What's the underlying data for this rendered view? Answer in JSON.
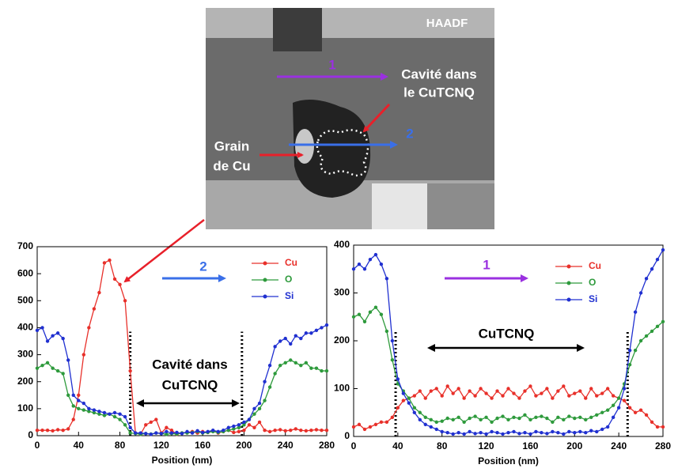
{
  "image": {
    "label": "HAADF",
    "arrow_1": "1",
    "cavity": [
      "Cavité dans",
      "le CuTCNQ"
    ],
    "arrow_2": "2",
    "grain": [
      "Grain",
      "de Cu"
    ]
  },
  "chart_data": [
    {
      "type": "line",
      "xlabel": "Position (nm)",
      "xlim": [
        0,
        280
      ],
      "xticks": [
        0,
        40,
        80,
        120,
        160,
        200,
        240,
        280
      ],
      "ylim": [
        0,
        700
      ],
      "yticks": [
        0,
        100,
        200,
        300,
        400,
        500,
        600,
        700
      ],
      "annotations": {
        "number": "2",
        "number_color": "#3a6fe8",
        "region": [
          "Cavité dans",
          "CuTCNQ"
        ]
      },
      "vlines": [
        90,
        198
      ],
      "x": [
        0,
        5,
        10,
        15,
        20,
        25,
        30,
        35,
        40,
        45,
        50,
        55,
        60,
        65,
        70,
        75,
        80,
        85,
        90,
        95,
        100,
        105,
        110,
        115,
        120,
        125,
        130,
        135,
        140,
        145,
        150,
        155,
        160,
        165,
        170,
        175,
        180,
        185,
        190,
        195,
        200,
        205,
        210,
        215,
        220,
        225,
        230,
        235,
        240,
        245,
        250,
        255,
        260,
        265,
        270,
        275,
        280
      ],
      "series": [
        {
          "name": "Cu",
          "color": "#e8302a",
          "values": [
            20,
            20,
            20,
            18,
            22,
            20,
            25,
            60,
            150,
            300,
            400,
            470,
            530,
            640,
            650,
            580,
            560,
            500,
            240,
            10,
            5,
            40,
            50,
            60,
            10,
            30,
            20,
            5,
            10,
            12,
            15,
            10,
            15,
            12,
            18,
            10,
            15,
            20,
            12,
            15,
            20,
            40,
            30,
            50,
            20,
            15,
            20,
            22,
            18,
            20,
            25,
            20,
            18,
            20,
            22,
            20,
            20
          ]
        },
        {
          "name": "O",
          "color": "#2e9a3c",
          "values": [
            250,
            260,
            270,
            250,
            240,
            230,
            150,
            110,
            100,
            95,
            90,
            85,
            80,
            75,
            80,
            70,
            60,
            40,
            10,
            8,
            5,
            8,
            6,
            10,
            8,
            5,
            8,
            6,
            10,
            10,
            12,
            15,
            10,
            12,
            15,
            12,
            15,
            20,
            25,
            30,
            40,
            60,
            80,
            100,
            130,
            180,
            230,
            260,
            270,
            280,
            270,
            260,
            270,
            250,
            250,
            240,
            240
          ]
        },
        {
          "name": "Si",
          "color": "#2030d0",
          "values": [
            390,
            400,
            350,
            370,
            380,
            360,
            280,
            150,
            130,
            120,
            100,
            95,
            90,
            85,
            80,
            85,
            80,
            70,
            30,
            10,
            10,
            8,
            5,
            10,
            8,
            15,
            10,
            12,
            8,
            15,
            10,
            18,
            12,
            15,
            20,
            15,
            20,
            30,
            35,
            40,
            50,
            60,
            100,
            120,
            200,
            260,
            330,
            350,
            360,
            340,
            370,
            360,
            380,
            380,
            390,
            400,
            410
          ]
        }
      ]
    },
    {
      "type": "line",
      "xlabel": "Position (nm)",
      "xlim": [
        0,
        280
      ],
      "xticks": [
        0,
        40,
        80,
        120,
        160,
        200,
        240,
        280
      ],
      "ylim": [
        0,
        400
      ],
      "yticks": [
        0,
        100,
        200,
        300,
        400
      ],
      "annotations": {
        "number": "1",
        "number_color": "#9a30e0",
        "region": [
          "CuTCNQ"
        ]
      },
      "vlines": [
        38,
        248
      ],
      "x": [
        0,
        5,
        10,
        15,
        20,
        25,
        30,
        35,
        40,
        45,
        50,
        55,
        60,
        65,
        70,
        75,
        80,
        85,
        90,
        95,
        100,
        105,
        110,
        115,
        120,
        125,
        130,
        135,
        140,
        145,
        150,
        155,
        160,
        165,
        170,
        175,
        180,
        185,
        190,
        195,
        200,
        205,
        210,
        215,
        220,
        225,
        230,
        235,
        240,
        245,
        250,
        255,
        260,
        265,
        270,
        275,
        280
      ],
      "series": [
        {
          "name": "Cu",
          "color": "#e8302a",
          "values": [
            20,
            25,
            15,
            20,
            25,
            30,
            30,
            40,
            60,
            75,
            80,
            85,
            95,
            80,
            95,
            100,
            85,
            105,
            90,
            100,
            80,
            95,
            85,
            100,
            90,
            80,
            95,
            85,
            100,
            90,
            80,
            95,
            105,
            85,
            90,
            100,
            80,
            95,
            105,
            85,
            90,
            95,
            80,
            100,
            85,
            90,
            100,
            85,
            80,
            75,
            60,
            50,
            55,
            45,
            30,
            20,
            20
          ]
        },
        {
          "name": "O",
          "color": "#2e9a3c",
          "values": [
            250,
            255,
            240,
            260,
            270,
            255,
            220,
            160,
            110,
            95,
            80,
            60,
            50,
            40,
            35,
            30,
            32,
            38,
            35,
            40,
            30,
            38,
            42,
            35,
            40,
            30,
            38,
            42,
            35,
            40,
            38,
            45,
            35,
            40,
            42,
            38,
            30,
            40,
            35,
            42,
            38,
            40,
            35,
            40,
            45,
            50,
            55,
            65,
            80,
            110,
            150,
            180,
            200,
            210,
            220,
            230,
            240
          ]
        },
        {
          "name": "Si",
          "color": "#2030d0",
          "values": [
            350,
            360,
            350,
            370,
            380,
            360,
            330,
            200,
            120,
            90,
            70,
            50,
            35,
            25,
            20,
            15,
            10,
            8,
            5,
            8,
            5,
            10,
            6,
            8,
            5,
            10,
            8,
            5,
            8,
            10,
            6,
            8,
            5,
            10,
            8,
            6,
            10,
            8,
            5,
            10,
            8,
            10,
            8,
            12,
            10,
            15,
            20,
            40,
            60,
            100,
            180,
            260,
            300,
            330,
            350,
            370,
            390
          ]
        }
      ]
    }
  ]
}
